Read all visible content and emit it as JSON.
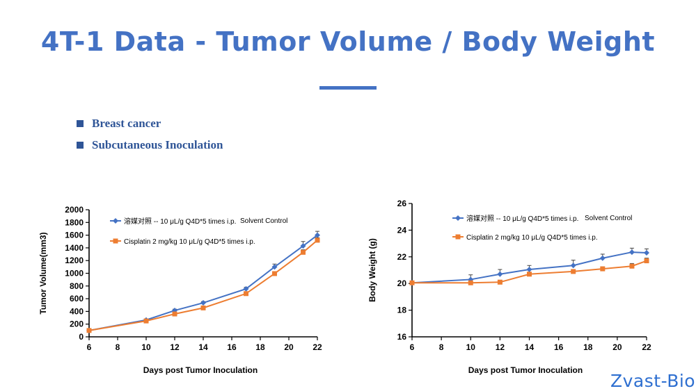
{
  "slide": {
    "title": "4T-1 Data - Tumor Volume / Body Weight",
    "bullets": [
      "Breast cancer",
      "Subcutaneous Inoculation"
    ],
    "brand": "Zvast-Bio",
    "accent_color": "#4472c4"
  },
  "chart_data": [
    {
      "type": "line",
      "xlabel": "Days post Tumor Inoculation",
      "ylabel": "Tumor Volume(mm3)",
      "xlim": [
        6,
        22
      ],
      "ylim": [
        0,
        2000
      ],
      "xticks": [
        6,
        8,
        10,
        12,
        14,
        16,
        18,
        20,
        22
      ],
      "yticks": [
        0,
        200,
        400,
        600,
        800,
        1000,
        1200,
        1400,
        1600,
        1800,
        2000
      ],
      "grid": false,
      "legend_position": "top-left",
      "series": [
        {
          "name": "溶媒对照 -- 10 μL/g Q4D*5 times i.p.",
          "annotation": "Solvent Control",
          "color": "#4472c4",
          "marker": "diamond",
          "x": [
            6,
            10,
            12,
            14,
            17,
            19,
            21,
            22
          ],
          "values": [
            100,
            265,
            415,
            535,
            755,
            1100,
            1430,
            1600
          ],
          "errors": [
            0,
            15,
            20,
            20,
            25,
            45,
            70,
            60
          ]
        },
        {
          "name": "Cisplatin 2 mg/kg 10 μL/g Q4D*5 times i.p.",
          "color": "#ed7d31",
          "marker": "square",
          "x": [
            6,
            10,
            12,
            14,
            17,
            19,
            21,
            22
          ],
          "values": [
            100,
            250,
            360,
            455,
            680,
            995,
            1330,
            1520
          ],
          "errors": [
            0,
            10,
            15,
            15,
            20,
            30,
            40,
            40
          ]
        }
      ]
    },
    {
      "type": "line",
      "xlabel": "Days post Tumor Inoculation",
      "ylabel": "Body Weight (g)",
      "xlim": [
        6,
        22
      ],
      "ylim": [
        16,
        26
      ],
      "xticks": [
        6,
        8,
        10,
        12,
        14,
        16,
        18,
        20,
        22
      ],
      "yticks": [
        16,
        18,
        20,
        22,
        24,
        26
      ],
      "grid": false,
      "legend_position": "top-left",
      "series": [
        {
          "name": "溶媒对照 -- 10 μL/g Q4D*5 times i.p.",
          "annotation": "Solvent Control",
          "color": "#4472c4",
          "marker": "diamond",
          "x": [
            6,
            10,
            12,
            14,
            17,
            19,
            21,
            22
          ],
          "values": [
            20.05,
            20.3,
            20.7,
            21.05,
            21.35,
            21.9,
            22.35,
            22.3
          ],
          "errors": [
            0.1,
            0.35,
            0.35,
            0.3,
            0.4,
            0.3,
            0.3,
            0.3
          ]
        },
        {
          "name": "Cisplatin 2 mg/kg 10 μL/g Q4D*5 times i.p.",
          "color": "#ed7d31",
          "marker": "square",
          "x": [
            6,
            10,
            12,
            14,
            17,
            19,
            21,
            22
          ],
          "values": [
            20.05,
            20.05,
            20.1,
            20.7,
            20.9,
            21.1,
            21.3,
            21.7
          ],
          "errors": [
            0.05,
            0.1,
            0.15,
            0.15,
            0.15,
            0.15,
            0.2,
            0.2
          ]
        }
      ]
    }
  ]
}
